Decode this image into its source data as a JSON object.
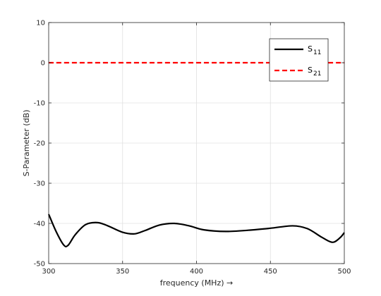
{
  "chart_data": {
    "type": "line",
    "xlabel": "frequency (MHz) →",
    "ylabel": "S-Parameter (dB)",
    "xlim": [
      300,
      500
    ],
    "ylim": [
      -50,
      10
    ],
    "x_ticks": [
      300,
      350,
      400,
      450,
      500
    ],
    "y_ticks": [
      10,
      0,
      -10,
      -20,
      -30,
      -40,
      -50
    ],
    "grid": true,
    "legend_position": "top-right",
    "series": [
      {
        "name": "S11",
        "name_main": "S",
        "name_sub": "11",
        "color": "#000000",
        "dash": "solid",
        "x": [
          300,
          305,
          310,
          313,
          318,
          325,
          333,
          340,
          350,
          358,
          365,
          375,
          385,
          395,
          405,
          420,
          435,
          450,
          465,
          475,
          485,
          492,
          497,
          500
        ],
        "y": [
          -37.7,
          -42.0,
          -45.3,
          -45.5,
          -42.8,
          -40.3,
          -39.8,
          -40.6,
          -42.2,
          -42.6,
          -41.8,
          -40.4,
          -40.0,
          -40.6,
          -41.6,
          -42.0,
          -41.7,
          -41.2,
          -40.6,
          -41.3,
          -43.5,
          -44.7,
          -43.6,
          -42.3
        ]
      },
      {
        "name": "S21",
        "name_main": "S",
        "name_sub": "21",
        "color": "#ff0000",
        "dash": "dashed",
        "x": [
          300,
          500
        ],
        "y": [
          0.0,
          0.0
        ]
      }
    ]
  }
}
